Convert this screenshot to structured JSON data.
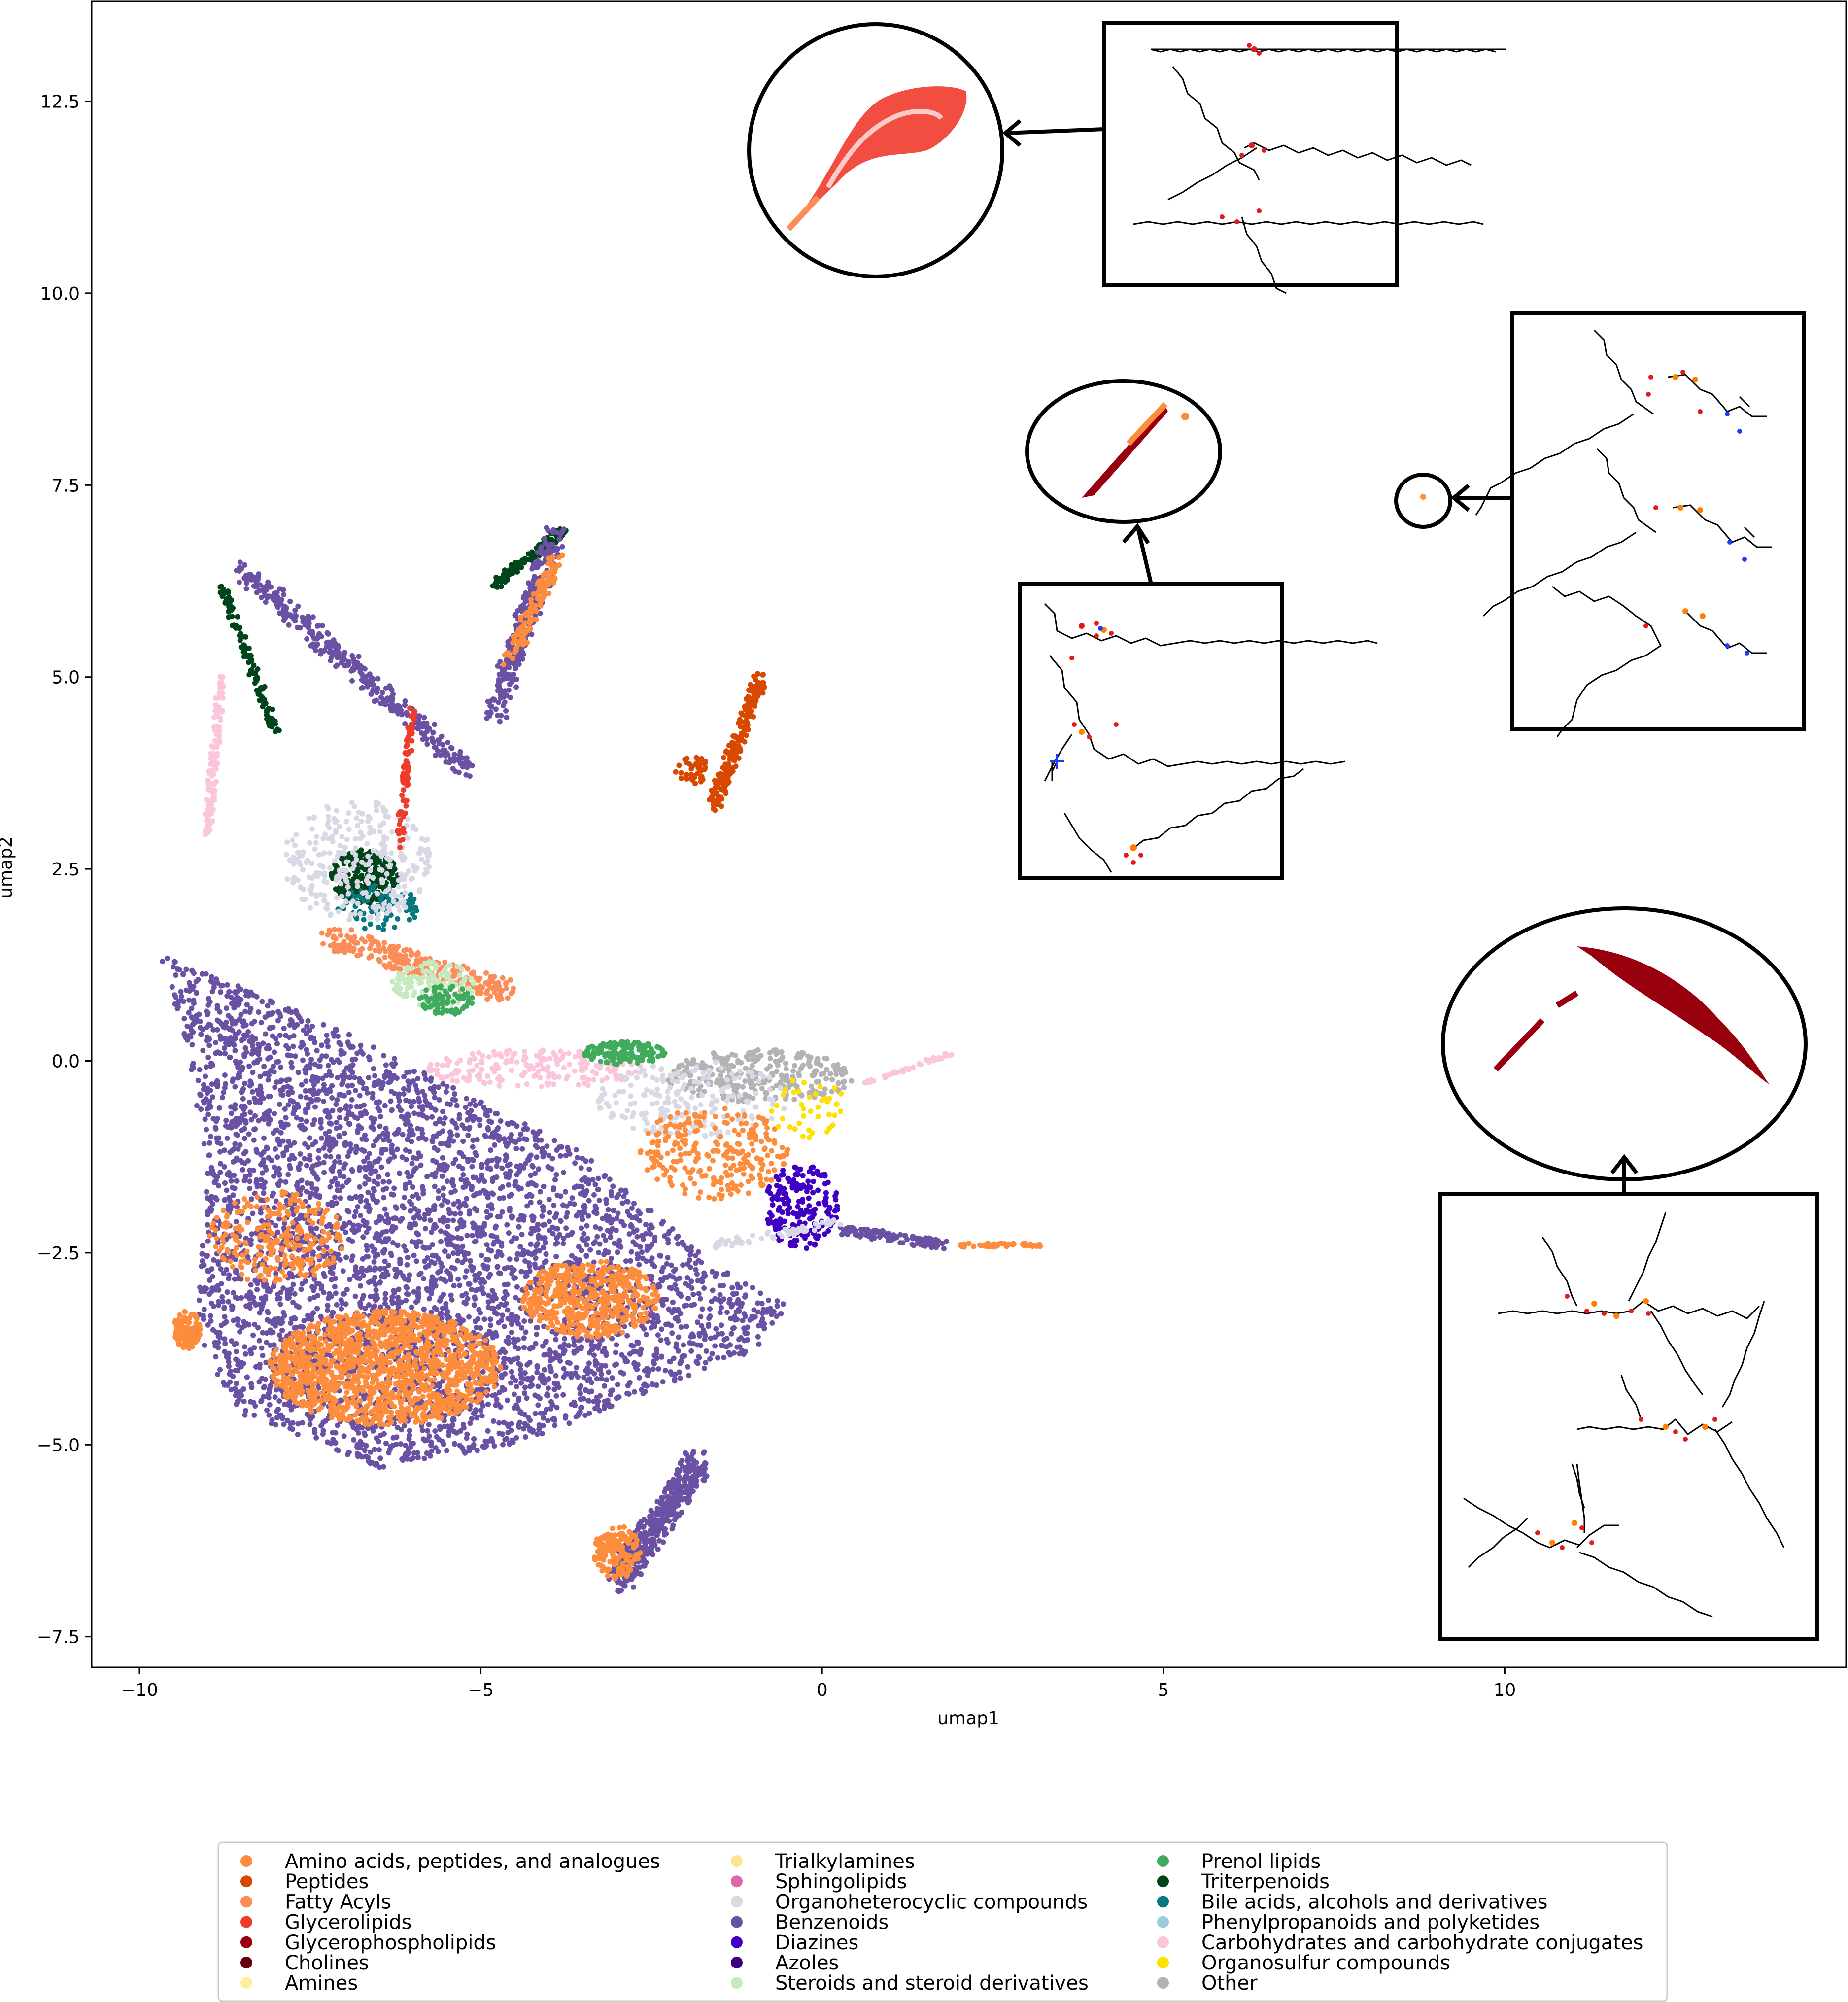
{
  "chart_data": {
    "type": "scatter",
    "title": "",
    "xlabel": "umap1",
    "ylabel": "umap2",
    "xlim": [
      -10.7,
      15.0
    ],
    "ylim": [
      -7.9,
      13.8
    ],
    "xticks": [
      -10,
      -5,
      0,
      5,
      10
    ],
    "xtick_labels": [
      "−10",
      "−5",
      "0",
      "5",
      "10"
    ],
    "yticks": [
      -7.5,
      -5.0,
      -2.5,
      0.0,
      2.5,
      5.0,
      7.5,
      10.0,
      12.5
    ],
    "ytick_labels": [
      "−7.5",
      "−5.0",
      "−2.5",
      "0.0",
      "2.5",
      "5.0",
      "7.5",
      "10.0",
      "12.5"
    ],
    "grid": false,
    "legend_position": "bottom-center",
    "legend_columns": 3,
    "series": [
      {
        "name": "Amino acids, peptides, and analogues",
        "color": "#fd8d3c"
      },
      {
        "name": "Peptides",
        "color": "#d94801"
      },
      {
        "name": "Fatty Acyls",
        "color": "#fc8d59"
      },
      {
        "name": "Glycerolipids",
        "color": "#ef3b2c"
      },
      {
        "name": "Glycerophospholipids",
        "color": "#99000d"
      },
      {
        "name": "Cholines",
        "color": "#67000d"
      },
      {
        "name": "Amines",
        "color": "#ffeda0"
      },
      {
        "name": "Trialkylamines",
        "color": "#fee391"
      },
      {
        "name": "Sphingolipids",
        "color": "#dd66aa"
      },
      {
        "name": "Organoheterocyclic compounds",
        "color": "#d9d9e6"
      },
      {
        "name": "Benzenoids",
        "color": "#6a51a3"
      },
      {
        "name": "Diazines",
        "color": "#3f00c4"
      },
      {
        "name": "Azoles",
        "color": "#3f007d"
      },
      {
        "name": "Steroids and steroid derivatives",
        "color": "#c7e9c0"
      },
      {
        "name": "Prenol lipids",
        "color": "#41ab5d"
      },
      {
        "name": "Triterpenoids",
        "color": "#00441b"
      },
      {
        "name": "Bile acids, alcohols and derivatives",
        "color": "#08787f"
      },
      {
        "name": "Phenylpropanoids and polyketides",
        "color": "#9ecae1"
      },
      {
        "name": "Carbohydrates and carbohydrate conjugates",
        "color": "#fbc5dc"
      },
      {
        "name": "Organosulfur compounds",
        "color": "#ffe100"
      },
      {
        "name": "Other",
        "color": "#b3b3b3"
      }
    ],
    "clusters": [
      {
        "series": 10,
        "shape": "polygon",
        "n": 5200,
        "poly": [
          [
            -9.7,
            1.4
          ],
          [
            -7.5,
            0.6
          ],
          [
            -5.5,
            -0.3
          ],
          [
            -3.5,
            -1.2
          ],
          [
            -1.5,
            -2.7
          ],
          [
            -0.5,
            -3.2
          ],
          [
            -1.0,
            -3.8
          ],
          [
            -2.5,
            -4.3
          ],
          [
            -4.5,
            -5.0
          ],
          [
            -6.5,
            -5.3
          ],
          [
            -8.5,
            -4.6
          ],
          [
            -9.2,
            -3.6
          ],
          [
            -9.0,
            -1.5
          ],
          [
            -9.3,
            0.2
          ]
        ]
      },
      {
        "series": 0,
        "shape": "ellipse",
        "n": 1400,
        "center": [
          -6.4,
          -4.0
        ],
        "radius": [
          1.7,
          0.75
        ]
      },
      {
        "series": 0,
        "shape": "ellipse",
        "n": 500,
        "center": [
          -3.4,
          -3.1
        ],
        "radius": [
          1.0,
          0.5
        ]
      },
      {
        "series": 0,
        "shape": "ellipse",
        "n": 120,
        "center": [
          -9.3,
          -3.5
        ],
        "radius": [
          0.2,
          0.25
        ]
      },
      {
        "series": 0,
        "shape": "ellipse",
        "n": 250,
        "center": [
          -8.0,
          -2.3
        ],
        "radius": [
          1.0,
          0.6
        ]
      },
      {
        "series": 10,
        "shape": "line",
        "n": 400,
        "from": [
          -3.0,
          -6.8
        ],
        "to": [
          -1.8,
          -5.2
        ],
        "width": 0.35
      },
      {
        "series": 0,
        "shape": "ellipse",
        "n": 150,
        "center": [
          -3.0,
          -6.4
        ],
        "radius": [
          0.35,
          0.35
        ]
      },
      {
        "series": 10,
        "shape": "line",
        "n": 350,
        "from": [
          -8.5,
          6.4
        ],
        "to": [
          -5.2,
          3.8
        ],
        "width": 0.25
      },
      {
        "series": 15,
        "shape": "line",
        "n": 120,
        "from": [
          -8.8,
          6.2
        ],
        "to": [
          -8.0,
          4.3
        ],
        "width": 0.12
      },
      {
        "series": 15,
        "shape": "ellipse",
        "n": 220,
        "center": [
          -6.7,
          2.4
        ],
        "radius": [
          0.5,
          0.35
        ]
      },
      {
        "series": 15,
        "shape": "line",
        "n": 120,
        "from": [
          -4.8,
          6.2
        ],
        "to": [
          -3.8,
          6.9
        ],
        "width": 0.12
      },
      {
        "series": 10,
        "shape": "line",
        "n": 300,
        "from": [
          -4.8,
          4.5
        ],
        "to": [
          -3.9,
          6.9
        ],
        "width": 0.3
      },
      {
        "series": 0,
        "shape": "line",
        "n": 120,
        "from": [
          -4.6,
          5.2
        ],
        "to": [
          -3.9,
          6.5
        ],
        "width": 0.2
      },
      {
        "series": 16,
        "shape": "ellipse",
        "n": 80,
        "center": [
          -6.5,
          2.0
        ],
        "radius": [
          0.6,
          0.3
        ]
      },
      {
        "series": 2,
        "shape": "line",
        "n": 250,
        "from": [
          -7.2,
          1.6
        ],
        "to": [
          -4.6,
          0.9
        ],
        "width": 0.3
      },
      {
        "series": 13,
        "shape": "ellipse",
        "n": 120,
        "center": [
          -5.7,
          1.0
        ],
        "radius": [
          0.6,
          0.3
        ]
      },
      {
        "series": 14,
        "shape": "ellipse",
        "n": 80,
        "center": [
          -5.5,
          0.8
        ],
        "radius": [
          0.4,
          0.2
        ]
      },
      {
        "series": 9,
        "shape": "ellipse",
        "n": 300,
        "center": [
          -6.8,
          2.6
        ],
        "radius": [
          1.1,
          0.8
        ]
      },
      {
        "series": 3,
        "shape": "line",
        "n": 90,
        "from": [
          -6.2,
          2.8
        ],
        "to": [
          -6.0,
          4.6
        ],
        "width": 0.1
      },
      {
        "series": 18,
        "shape": "line",
        "n": 120,
        "from": [
          -9.0,
          3.0
        ],
        "to": [
          -8.8,
          5.0
        ],
        "width": 0.12
      },
      {
        "series": 18,
        "shape": "ellipse",
        "n": 200,
        "center": [
          -4.2,
          -0.1
        ],
        "radius": [
          1.6,
          0.25
        ]
      },
      {
        "series": 14,
        "shape": "ellipse",
        "n": 130,
        "center": [
          -2.9,
          0.1
        ],
        "radius": [
          0.6,
          0.15
        ]
      },
      {
        "series": 20,
        "shape": "ellipse",
        "n": 280,
        "center": [
          -0.9,
          -0.2
        ],
        "radius": [
          1.4,
          0.35
        ]
      },
      {
        "series": 9,
        "shape": "ellipse",
        "n": 200,
        "center": [
          -1.9,
          -0.5
        ],
        "radius": [
          1.4,
          0.5
        ]
      },
      {
        "series": 0,
        "shape": "ellipse",
        "n": 250,
        "center": [
          -1.6,
          -1.2
        ],
        "radius": [
          1.1,
          0.6
        ]
      },
      {
        "series": 11,
        "shape": "ellipse",
        "n": 180,
        "center": [
          -0.3,
          -1.9
        ],
        "radius": [
          0.55,
          0.55
        ]
      },
      {
        "series": 10,
        "shape": "line",
        "n": 120,
        "from": [
          0.3,
          -2.2
        ],
        "to": [
          1.8,
          -2.4
        ],
        "width": 0.12
      },
      {
        "series": 0,
        "shape": "line",
        "n": 60,
        "from": [
          2.0,
          -2.4
        ],
        "to": [
          3.2,
          -2.4
        ],
        "width": 0.05
      },
      {
        "series": 19,
        "shape": "ellipse",
        "n": 40,
        "center": [
          -0.2,
          -0.6
        ],
        "radius": [
          0.6,
          0.4
        ]
      },
      {
        "series": 1,
        "shape": "line",
        "n": 220,
        "from": [
          -1.6,
          3.3
        ],
        "to": [
          -0.9,
          5.0
        ],
        "width": 0.18
      },
      {
        "series": 1,
        "shape": "ellipse",
        "n": 40,
        "center": [
          -1.9,
          3.8
        ],
        "radius": [
          0.25,
          0.2
        ]
      },
      {
        "series": 18,
        "shape": "line",
        "n": 40,
        "from": [
          0.6,
          -0.3
        ],
        "to": [
          1.9,
          0.1
        ],
        "width": 0.05
      },
      {
        "series": 9,
        "shape": "line",
        "n": 60,
        "from": [
          -1.6,
          -2.4
        ],
        "to": [
          0.3,
          -2.1
        ],
        "width": 0.1
      }
    ]
  },
  "insets": [
    {
      "id": "glycerolipids",
      "cluster_color": "#ef3b2c",
      "accent": "#fc8d59"
    },
    {
      "id": "glycerophospholipids",
      "cluster_color": "#99000d",
      "accent": "#fd8d3c"
    },
    {
      "id": "small-point",
      "cluster_color": "#fd8d3c"
    },
    {
      "id": "cardiolipins",
      "cluster_color": "#99000d"
    }
  ]
}
